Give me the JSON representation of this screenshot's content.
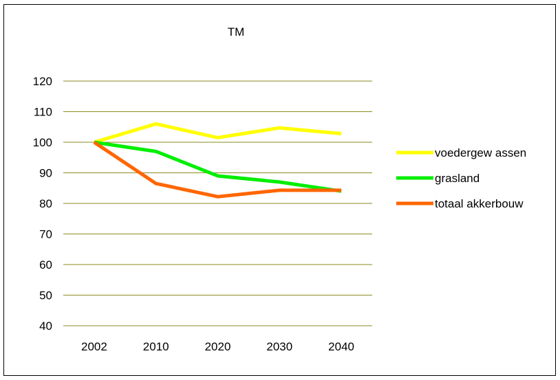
{
  "chart_data": {
    "type": "line",
    "title": "TM",
    "xlabel": "",
    "ylabel": "",
    "categories": [
      "2002",
      "2010",
      "2020",
      "2030",
      "2040"
    ],
    "ylim": [
      40,
      120
    ],
    "yticks": [
      40,
      50,
      60,
      70,
      80,
      90,
      100,
      110,
      120
    ],
    "grid": true,
    "gridColor": "#8a8a20",
    "legend_position": "right",
    "series": [
      {
        "name": "voedergew assen",
        "color": "#ffff00",
        "values": [
          100,
          106,
          101.5,
          104.7,
          102.8
        ]
      },
      {
        "name": "grasland",
        "color": "#00ee00",
        "values": [
          100,
          97,
          89,
          87,
          84
        ]
      },
      {
        "name": "totaal akkerbouw",
        "color": "#ff6600",
        "values": [
          100,
          86.5,
          82.2,
          84.3,
          84.3
        ]
      }
    ]
  }
}
